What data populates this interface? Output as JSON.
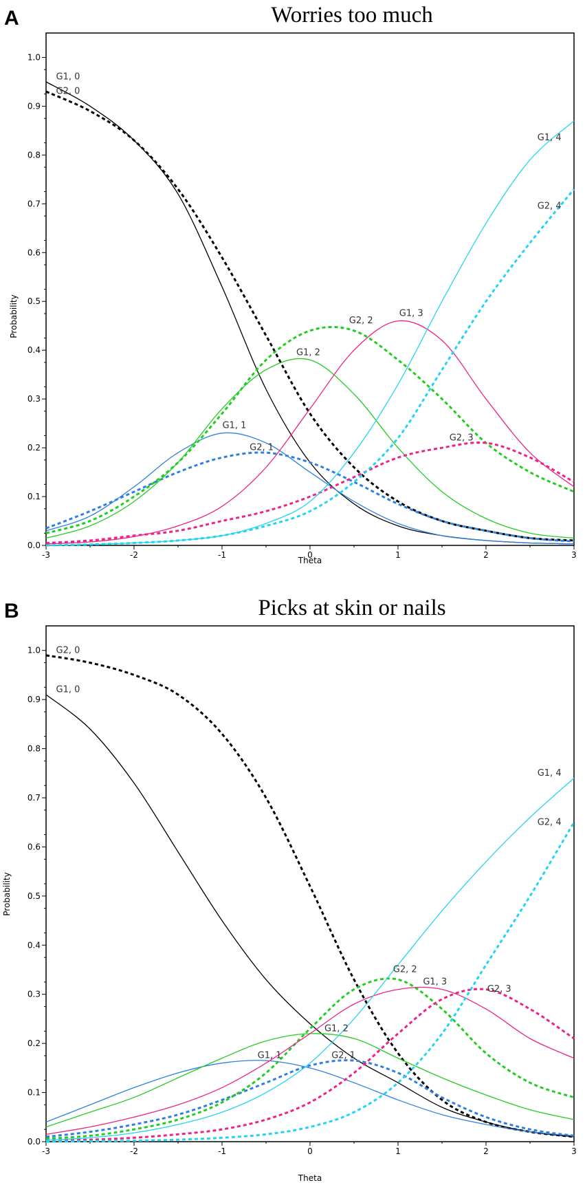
{
  "colors": {
    "cat0": "#000000",
    "cat1": "#2f7fe0",
    "cat2": "#22cc22",
    "cat3": "#ee2288",
    "cat4": "#22d4f2"
  },
  "chart_data": [
    {
      "panel": "A",
      "type": "line",
      "title": "Worries too much",
      "xlabel": "Theta",
      "ylabel": "Probability",
      "xlim": [
        -3,
        3
      ],
      "ylim": [
        0,
        1.05
      ],
      "xticks": [
        -3,
        -2,
        -1,
        0,
        1,
        2,
        3
      ],
      "yticks": [
        0.0,
        0.1,
        0.2,
        0.3,
        0.4,
        0.5,
        0.6,
        0.7,
        0.8,
        0.9,
        1.0
      ],
      "x": [
        -3,
        -2.5,
        -2,
        -1.5,
        -1,
        -0.5,
        0,
        0.5,
        1,
        1.5,
        2,
        2.5,
        3
      ],
      "series": [
        {
          "name": "G1, 0",
          "category": 0,
          "dashed": false,
          "values": [
            0.95,
            0.9,
            0.83,
            0.72,
            0.53,
            0.32,
            0.17,
            0.085,
            0.04,
            0.02,
            0.01,
            0.005,
            0.003
          ]
        },
        {
          "name": "G2, 0",
          "category": 0,
          "dashed": true,
          "values": [
            0.93,
            0.89,
            0.83,
            0.73,
            0.59,
            0.43,
            0.27,
            0.16,
            0.09,
            0.05,
            0.03,
            0.015,
            0.01
          ]
        },
        {
          "name": "G1, 1",
          "category": 1,
          "dashed": false,
          "values": [
            0.03,
            0.06,
            0.12,
            0.19,
            0.23,
            0.21,
            0.15,
            0.09,
            0.045,
            0.02,
            0.01,
            0.005,
            0.003
          ]
        },
        {
          "name": "G2, 1",
          "category": 1,
          "dashed": true,
          "values": [
            0.035,
            0.07,
            0.11,
            0.15,
            0.18,
            0.19,
            0.17,
            0.13,
            0.085,
            0.05,
            0.03,
            0.015,
            0.008
          ]
        },
        {
          "name": "G1, 2",
          "category": 2,
          "dashed": false,
          "values": [
            0.015,
            0.04,
            0.09,
            0.17,
            0.28,
            0.36,
            0.38,
            0.31,
            0.2,
            0.11,
            0.055,
            0.025,
            0.015
          ]
        },
        {
          "name": "G2, 2",
          "category": 2,
          "dashed": true,
          "values": [
            0.025,
            0.05,
            0.1,
            0.17,
            0.27,
            0.38,
            0.44,
            0.44,
            0.38,
            0.3,
            0.21,
            0.15,
            0.11
          ]
        },
        {
          "name": "G1, 3",
          "category": 3,
          "dashed": false,
          "values": [
            0.003,
            0.007,
            0.018,
            0.04,
            0.08,
            0.16,
            0.28,
            0.4,
            0.46,
            0.42,
            0.3,
            0.19,
            0.12
          ]
        },
        {
          "name": "G2, 3",
          "category": 3,
          "dashed": true,
          "values": [
            0.005,
            0.01,
            0.02,
            0.03,
            0.05,
            0.07,
            0.1,
            0.14,
            0.18,
            0.2,
            0.21,
            0.18,
            0.13
          ]
        },
        {
          "name": "G1, 4",
          "category": 4,
          "dashed": false,
          "values": [
            0.0,
            0.002,
            0.005,
            0.01,
            0.02,
            0.045,
            0.09,
            0.19,
            0.33,
            0.5,
            0.66,
            0.79,
            0.87
          ]
        },
        {
          "name": "G2, 4",
          "category": 4,
          "dashed": true,
          "values": [
            0.0,
            0.002,
            0.005,
            0.01,
            0.02,
            0.04,
            0.07,
            0.13,
            0.22,
            0.36,
            0.5,
            0.62,
            0.73
          ]
        }
      ]
    },
    {
      "panel": "B",
      "type": "line",
      "title": "Picks at skin or nails",
      "xlabel": "Theta",
      "ylabel": "Probability",
      "xlim": [
        -3,
        3
      ],
      "ylim": [
        0,
        1.05
      ],
      "xticks": [
        -3,
        -2,
        -1,
        0,
        1,
        2,
        3
      ],
      "yticks": [
        0.0,
        0.1,
        0.2,
        0.3,
        0.4,
        0.5,
        0.6,
        0.7,
        0.8,
        0.9,
        1.0
      ],
      "x": [
        -3,
        -2.5,
        -2,
        -1.5,
        -1,
        -0.5,
        0,
        0.5,
        1,
        1.5,
        2,
        2.5,
        3
      ],
      "series": [
        {
          "name": "G2, 0",
          "category": 0,
          "dashed": true,
          "values": [
            0.99,
            0.975,
            0.95,
            0.91,
            0.83,
            0.7,
            0.52,
            0.33,
            0.18,
            0.085,
            0.04,
            0.02,
            0.01
          ]
        },
        {
          "name": "G1, 0",
          "category": 0,
          "dashed": false,
          "values": [
            0.91,
            0.84,
            0.73,
            0.59,
            0.45,
            0.33,
            0.24,
            0.17,
            0.12,
            0.07,
            0.04,
            0.02,
            0.01
          ]
        },
        {
          "name": "G1, 1",
          "category": 1,
          "dashed": false,
          "values": [
            0.04,
            0.075,
            0.11,
            0.14,
            0.16,
            0.165,
            0.15,
            0.12,
            0.085,
            0.055,
            0.035,
            0.02,
            0.012
          ]
        },
        {
          "name": "G2, 1",
          "category": 1,
          "dashed": true,
          "values": [
            0.01,
            0.02,
            0.035,
            0.055,
            0.085,
            0.12,
            0.155,
            0.165,
            0.14,
            0.09,
            0.05,
            0.025,
            0.012
          ]
        },
        {
          "name": "G1, 2",
          "category": 2,
          "dashed": false,
          "values": [
            0.03,
            0.06,
            0.09,
            0.13,
            0.17,
            0.205,
            0.22,
            0.21,
            0.17,
            0.13,
            0.095,
            0.065,
            0.045
          ]
        },
        {
          "name": "G2, 2",
          "category": 2,
          "dashed": true,
          "values": [
            0.006,
            0.012,
            0.025,
            0.045,
            0.08,
            0.14,
            0.23,
            0.31,
            0.33,
            0.27,
            0.18,
            0.12,
            0.09
          ]
        },
        {
          "name": "G1, 3",
          "category": 3,
          "dashed": false,
          "values": [
            0.015,
            0.03,
            0.05,
            0.075,
            0.11,
            0.16,
            0.22,
            0.28,
            0.31,
            0.31,
            0.27,
            0.21,
            0.17
          ]
        },
        {
          "name": "G2, 3",
          "category": 3,
          "dashed": true,
          "values": [
            0.002,
            0.004,
            0.008,
            0.015,
            0.025,
            0.045,
            0.08,
            0.14,
            0.22,
            0.29,
            0.31,
            0.27,
            0.21
          ]
        },
        {
          "name": "G1, 4",
          "category": 4,
          "dashed": false,
          "values": [
            0.003,
            0.008,
            0.018,
            0.035,
            0.06,
            0.1,
            0.16,
            0.25,
            0.36,
            0.47,
            0.57,
            0.66,
            0.74
          ]
        },
        {
          "name": "G2, 4",
          "category": 4,
          "dashed": true,
          "values": [
            0.0,
            0.001,
            0.002,
            0.004,
            0.008,
            0.015,
            0.03,
            0.06,
            0.12,
            0.22,
            0.36,
            0.5,
            0.65
          ]
        }
      ]
    }
  ]
}
